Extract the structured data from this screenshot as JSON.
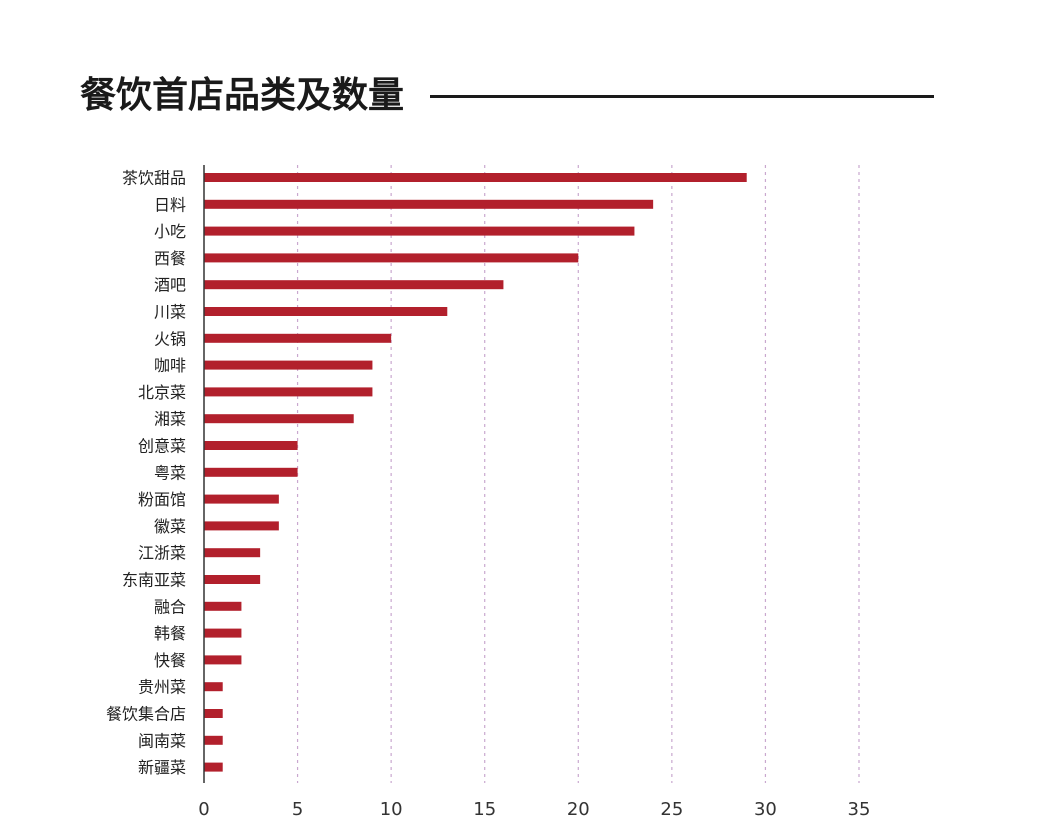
{
  "title": "餐饮首店品类及数量",
  "chart_data": {
    "type": "bar",
    "orientation": "horizontal",
    "title": "餐饮首店品类及数量",
    "xlabel": "",
    "ylabel": "",
    "categories": [
      "茶饮甜品",
      "日料",
      "小吃",
      "西餐",
      "酒吧",
      "川菜",
      "火锅",
      "咖啡",
      "北京菜",
      "湘菜",
      "创意菜",
      "粤菜",
      "粉面馆",
      "徽菜",
      "江浙菜",
      "东南亚菜",
      "融合",
      "韩餐",
      "快餐",
      "贵州菜",
      "餐饮集合店",
      "闽南菜",
      "新疆菜"
    ],
    "values": [
      29,
      24,
      23,
      20,
      16,
      13,
      10,
      9,
      9,
      8,
      5,
      5,
      4,
      4,
      3,
      3,
      2,
      2,
      2,
      1,
      1,
      1,
      1
    ],
    "xlim": [
      0,
      35
    ],
    "xticks": [
      0,
      5,
      10,
      15,
      20,
      25,
      30,
      35
    ],
    "grid": "vertical dotted",
    "legend": "none",
    "colors": {
      "bar": "#b2202c",
      "grid": "#c9a8cf",
      "axis": "#333333"
    }
  }
}
